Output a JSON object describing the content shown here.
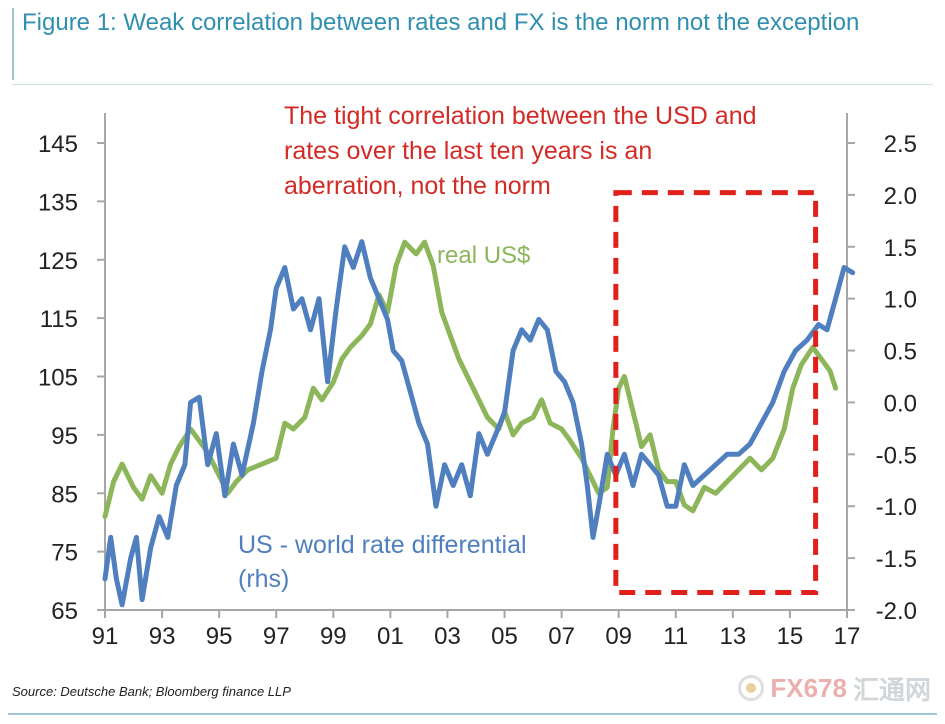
{
  "figure": {
    "title": "Figure 1: Weak correlation between rates and FX is the norm not the exception",
    "source": "Source: Deutsche Bank; Bloomberg finance LLP"
  },
  "watermark": {
    "brand": "FX678",
    "chinese": "汇通网"
  },
  "chart_data": {
    "type": "line",
    "title": "Figure 1: Weak correlation between rates and FX is the norm not the exception",
    "xlabel": "",
    "ylabel_left": "",
    "ylabel_right": "",
    "x_ticks": [
      "91",
      "93",
      "95",
      "97",
      "99",
      "01",
      "03",
      "05",
      "07",
      "09",
      "11",
      "13",
      "15",
      "17"
    ],
    "x_tick_positions": [
      1991,
      1993,
      1995,
      1997,
      1999,
      2001,
      2003,
      2005,
      2007,
      2009,
      2011,
      2013,
      2015,
      2017
    ],
    "xlim": [
      1991,
      2017
    ],
    "y_left_ticks": [
      "145",
      "135",
      "125",
      "115",
      "105",
      "95",
      "85",
      "75",
      "65"
    ],
    "y_left_values": [
      145,
      135,
      125,
      115,
      105,
      95,
      85,
      75,
      65
    ],
    "ylim_left": [
      65,
      145
    ],
    "y_right_ticks": [
      "2.5",
      "2.0",
      "1.5",
      "1.0",
      "0.5",
      "0.0",
      "-0.5",
      "-1.0",
      "-1.5",
      "-2.0"
    ],
    "y_right_values": [
      2.5,
      2.0,
      1.5,
      1.0,
      0.5,
      0.0,
      -0.5,
      -1.0,
      -1.5,
      -2.0
    ],
    "ylim_right": [
      -2.0,
      2.5
    ],
    "grid": false,
    "legend": "inline labels",
    "annotation": "The tight correlation between the USD and rates over the last ten years is an aberration, not the norm",
    "highlight_box": {
      "x_from": 2008.9,
      "x_to": 2015.9,
      "y_left_from": 68,
      "y_left_to": 136.5
    },
    "series": [
      {
        "name": "real US$",
        "axis": "left",
        "color": "#8db65a",
        "points": [
          [
            1991.0,
            81
          ],
          [
            1991.3,
            87
          ],
          [
            1991.6,
            90
          ],
          [
            1992.0,
            86
          ],
          [
            1992.3,
            84
          ],
          [
            1992.6,
            88
          ],
          [
            1993.0,
            85
          ],
          [
            1993.3,
            90
          ],
          [
            1993.6,
            93
          ],
          [
            1994.0,
            96
          ],
          [
            1994.3,
            94
          ],
          [
            1994.6,
            92
          ],
          [
            1995.0,
            88
          ],
          [
            1995.3,
            85
          ],
          [
            1995.6,
            87
          ],
          [
            1996.0,
            89
          ],
          [
            1996.5,
            90
          ],
          [
            1997.0,
            91
          ],
          [
            1997.3,
            97
          ],
          [
            1997.6,
            96
          ],
          [
            1998.0,
            98
          ],
          [
            1998.3,
            103
          ],
          [
            1998.6,
            101
          ],
          [
            1999.0,
            104
          ],
          [
            1999.3,
            108
          ],
          [
            1999.6,
            110
          ],
          [
            2000.0,
            112
          ],
          [
            2000.3,
            114
          ],
          [
            2000.6,
            119
          ],
          [
            2000.9,
            116
          ],
          [
            2001.2,
            124
          ],
          [
            2001.5,
            128
          ],
          [
            2001.9,
            126
          ],
          [
            2002.2,
            128
          ],
          [
            2002.5,
            124
          ],
          [
            2002.8,
            116
          ],
          [
            2003.1,
            112
          ],
          [
            2003.4,
            108
          ],
          [
            2003.7,
            105
          ],
          [
            2004.0,
            102
          ],
          [
            2004.4,
            98
          ],
          [
            2004.8,
            96
          ],
          [
            2005.0,
            99
          ],
          [
            2005.3,
            95
          ],
          [
            2005.6,
            97
          ],
          [
            2006.0,
            98
          ],
          [
            2006.3,
            101
          ],
          [
            2006.6,
            97
          ],
          [
            2007.0,
            96
          ],
          [
            2007.3,
            94
          ],
          [
            2007.7,
            91
          ],
          [
            2008.0,
            88
          ],
          [
            2008.3,
            85
          ],
          [
            2008.6,
            86
          ],
          [
            2008.8,
            96
          ],
          [
            2009.0,
            103
          ],
          [
            2009.2,
            105
          ],
          [
            2009.5,
            99
          ],
          [
            2009.8,
            93
          ],
          [
            2010.1,
            95
          ],
          [
            2010.4,
            89
          ],
          [
            2010.7,
            87
          ],
          [
            2011.0,
            87
          ],
          [
            2011.3,
            83
          ],
          [
            2011.6,
            82
          ],
          [
            2012.0,
            86
          ],
          [
            2012.4,
            85
          ],
          [
            2012.8,
            87
          ],
          [
            2013.2,
            89
          ],
          [
            2013.6,
            91
          ],
          [
            2014.0,
            89
          ],
          [
            2014.4,
            91
          ],
          [
            2014.8,
            96
          ],
          [
            2015.1,
            103
          ],
          [
            2015.4,
            107
          ],
          [
            2015.8,
            110
          ],
          [
            2016.1,
            108
          ],
          [
            2016.4,
            106
          ],
          [
            2016.6,
            103
          ]
        ]
      },
      {
        "name": "US - world rate differential (rhs)",
        "axis": "right",
        "color": "#4f7fbf",
        "points": [
          [
            1991.0,
            -1.7
          ],
          [
            1991.2,
            -1.3
          ],
          [
            1991.4,
            -1.7
          ],
          [
            1991.6,
            -1.95
          ],
          [
            1991.9,
            -1.5
          ],
          [
            1992.1,
            -1.3
          ],
          [
            1992.3,
            -1.9
          ],
          [
            1992.6,
            -1.4
          ],
          [
            1992.9,
            -1.1
          ],
          [
            1993.2,
            -1.3
          ],
          [
            1993.5,
            -0.8
          ],
          [
            1993.8,
            -0.6
          ],
          [
            1994.0,
            0.0
          ],
          [
            1994.3,
            0.05
          ],
          [
            1994.6,
            -0.6
          ],
          [
            1994.9,
            -0.3
          ],
          [
            1995.2,
            -0.9
          ],
          [
            1995.5,
            -0.4
          ],
          [
            1995.8,
            -0.7
          ],
          [
            1996.2,
            -0.2
          ],
          [
            1996.5,
            0.3
          ],
          [
            1996.8,
            0.7
          ],
          [
            1997.0,
            1.1
          ],
          [
            1997.3,
            1.3
          ],
          [
            1997.6,
            0.9
          ],
          [
            1997.9,
            1.0
          ],
          [
            1998.2,
            0.7
          ],
          [
            1998.5,
            1.0
          ],
          [
            1998.8,
            0.2
          ],
          [
            1999.1,
            0.9
          ],
          [
            1999.4,
            1.5
          ],
          [
            1999.7,
            1.3
          ],
          [
            2000.0,
            1.55
          ],
          [
            2000.3,
            1.2
          ],
          [
            2000.6,
            1.0
          ],
          [
            2000.9,
            0.8
          ],
          [
            2001.1,
            0.5
          ],
          [
            2001.4,
            0.4
          ],
          [
            2001.7,
            0.1
          ],
          [
            2002.0,
            -0.2
          ],
          [
            2002.3,
            -0.4
          ],
          [
            2002.6,
            -1.0
          ],
          [
            2002.9,
            -0.6
          ],
          [
            2003.2,
            -0.8
          ],
          [
            2003.5,
            -0.6
          ],
          [
            2003.8,
            -0.9
          ],
          [
            2004.1,
            -0.3
          ],
          [
            2004.4,
            -0.5
          ],
          [
            2004.7,
            -0.3
          ],
          [
            2005.0,
            -0.1
          ],
          [
            2005.3,
            0.5
          ],
          [
            2005.6,
            0.7
          ],
          [
            2005.9,
            0.6
          ],
          [
            2006.2,
            0.8
          ],
          [
            2006.5,
            0.7
          ],
          [
            2006.8,
            0.3
          ],
          [
            2007.1,
            0.2
          ],
          [
            2007.4,
            0.0
          ],
          [
            2007.7,
            -0.4
          ],
          [
            2007.9,
            -0.8
          ],
          [
            2008.1,
            -1.3
          ],
          [
            2008.3,
            -1.0
          ],
          [
            2008.6,
            -0.5
          ],
          [
            2008.9,
            -0.7
          ],
          [
            2009.2,
            -0.5
          ],
          [
            2009.5,
            -0.8
          ],
          [
            2009.8,
            -0.5
          ],
          [
            2010.1,
            -0.6
          ],
          [
            2010.4,
            -0.7
          ],
          [
            2010.7,
            -1.0
          ],
          [
            2011.0,
            -1.0
          ],
          [
            2011.3,
            -0.6
          ],
          [
            2011.6,
            -0.8
          ],
          [
            2012.0,
            -0.7
          ],
          [
            2012.4,
            -0.6
          ],
          [
            2012.8,
            -0.5
          ],
          [
            2013.2,
            -0.5
          ],
          [
            2013.6,
            -0.4
          ],
          [
            2014.0,
            -0.2
          ],
          [
            2014.4,
            0.0
          ],
          [
            2014.8,
            0.3
          ],
          [
            2015.2,
            0.5
          ],
          [
            2015.6,
            0.6
          ],
          [
            2016.0,
            0.75
          ],
          [
            2016.3,
            0.7
          ],
          [
            2016.6,
            1.0
          ],
          [
            2016.9,
            1.3
          ],
          [
            2017.2,
            1.25
          ]
        ]
      }
    ]
  }
}
